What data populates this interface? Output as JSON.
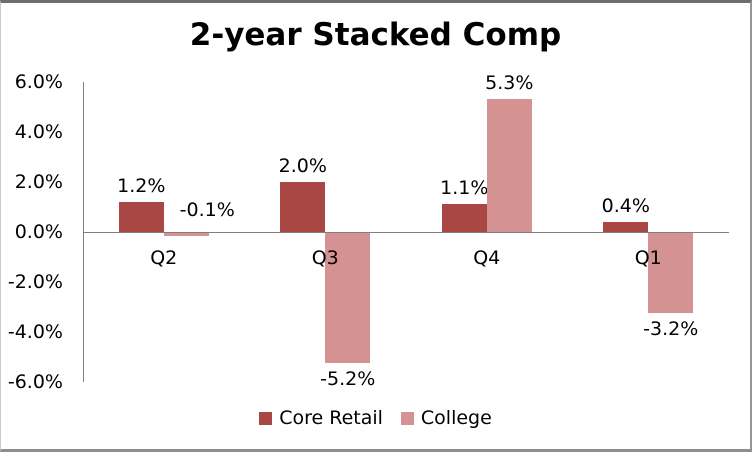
{
  "chart_data": {
    "type": "bar",
    "title": "2-year Stacked Comp",
    "categories": [
      "Q2",
      "Q3",
      "Q4",
      "Q1"
    ],
    "series": [
      {
        "name": "Core Retail",
        "color": "#A84743",
        "values": [
          1.2,
          2.0,
          1.1,
          0.4
        ],
        "labels": [
          "1.2%",
          "2.0%",
          "1.1%",
          "0.4%"
        ]
      },
      {
        "name": "College",
        "color": "#D49293",
        "values": [
          -0.1,
          -5.2,
          5.3,
          -3.2
        ],
        "labels": [
          "-0.1%",
          "-5.2%",
          "5.3%",
          "-3.2%"
        ]
      }
    ],
    "ylim": [
      -6,
      6
    ],
    "yticks": [
      6,
      4,
      2,
      0,
      -2,
      -4,
      -6
    ],
    "ytick_labels": [
      "6.0%",
      "4.0%",
      "2.0%",
      "0.0%",
      "-2.0%",
      "-4.0%",
      "-6.0%"
    ],
    "grid": false,
    "legend_position": "bottom",
    "axis_line_color": "#808080",
    "text_color": "#000000",
    "background_color": "#FFFFFF",
    "label_adjustments": [
      {
        "series": 1,
        "index": 0,
        "dx": 21,
        "side": "above"
      }
    ]
  }
}
